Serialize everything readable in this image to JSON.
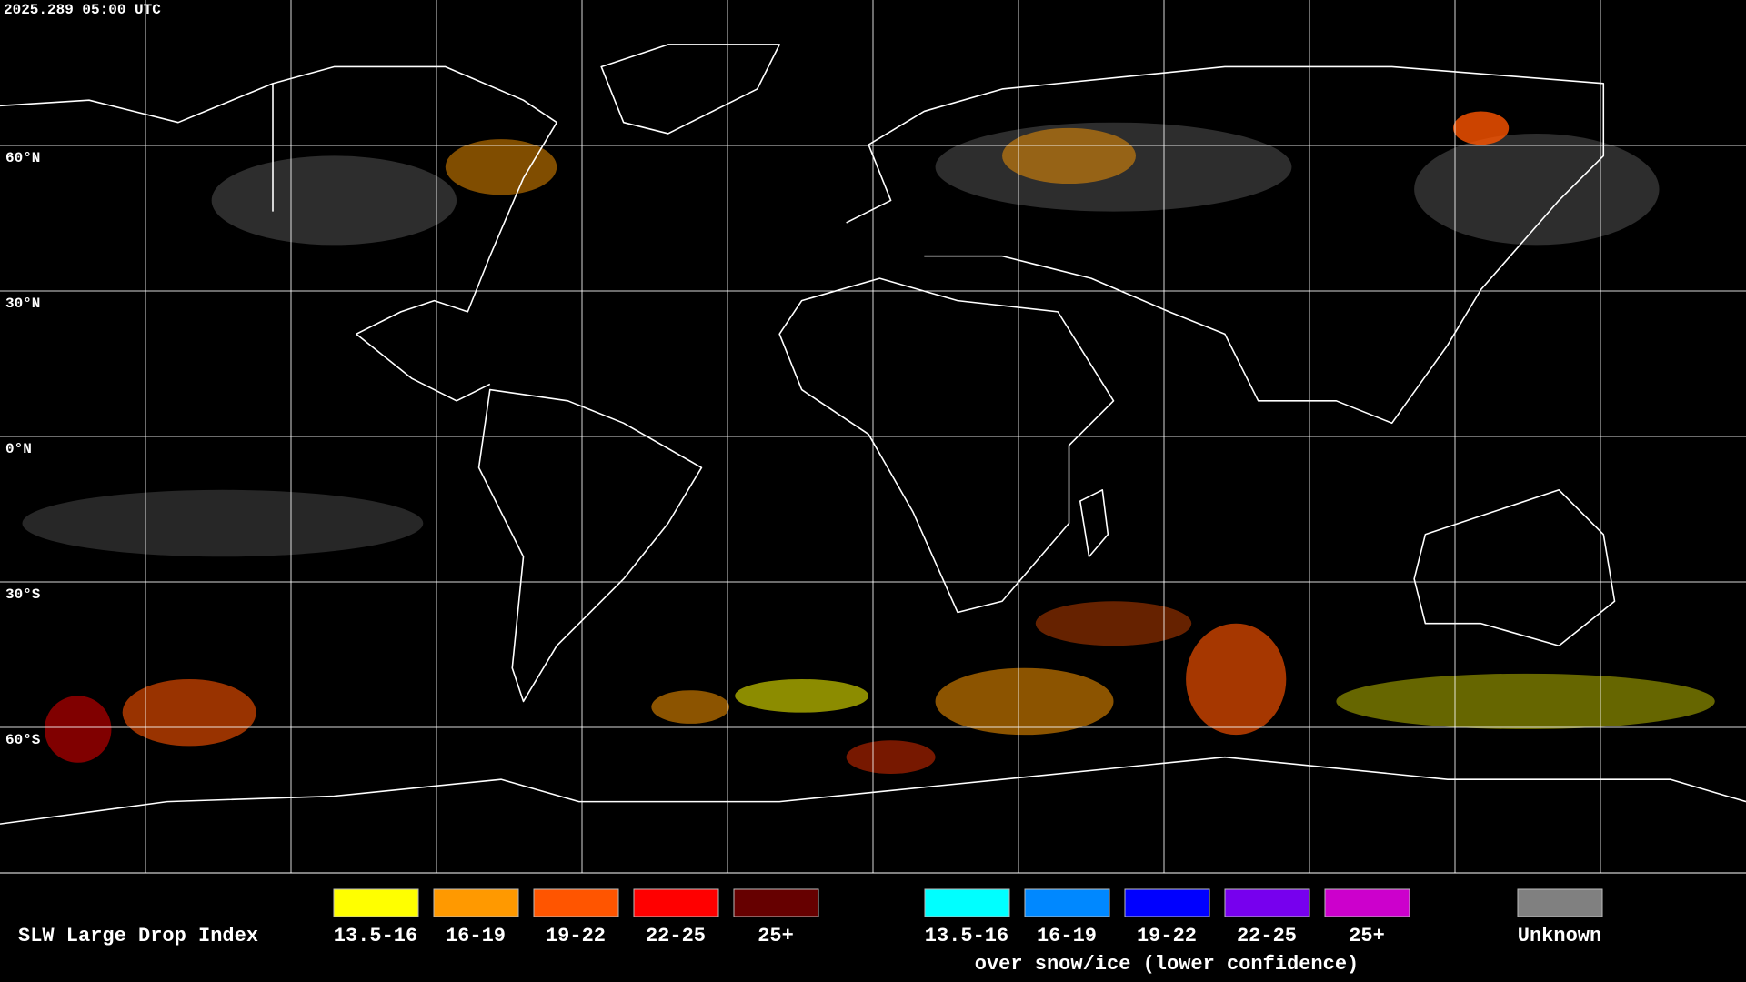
{
  "timestamp": "2025.289 05:00 UTC",
  "latitude_labels": [
    "60°N",
    "30°N",
    "0°N",
    "30°S",
    "60°S"
  ],
  "legend": {
    "title": "SLW Large Drop Index",
    "groups": [
      {
        "items": [
          {
            "label": "13.5-16",
            "color": "#ffff00"
          },
          {
            "label": "16-19",
            "color": "#ff9900"
          },
          {
            "label": "19-22",
            "color": "#ff5500"
          },
          {
            "label": "22-25",
            "color": "#ff0000"
          },
          {
            "label": "25+",
            "color": "#660000"
          }
        ]
      },
      {
        "items": [
          {
            "label": "13.5-16",
            "color": "#00ffff"
          },
          {
            "label": "16-19",
            "color": "#0088ff"
          },
          {
            "label": "19-22",
            "color": "#0000ff"
          },
          {
            "label": "22-25",
            "color": "#7700ee"
          },
          {
            "label": "25+",
            "color": "#cc00cc"
          }
        ]
      }
    ],
    "snow_caption": "over snow/ice (lower confidence)",
    "unknown": {
      "label": "Unknown",
      "color": "#808080"
    }
  }
}
